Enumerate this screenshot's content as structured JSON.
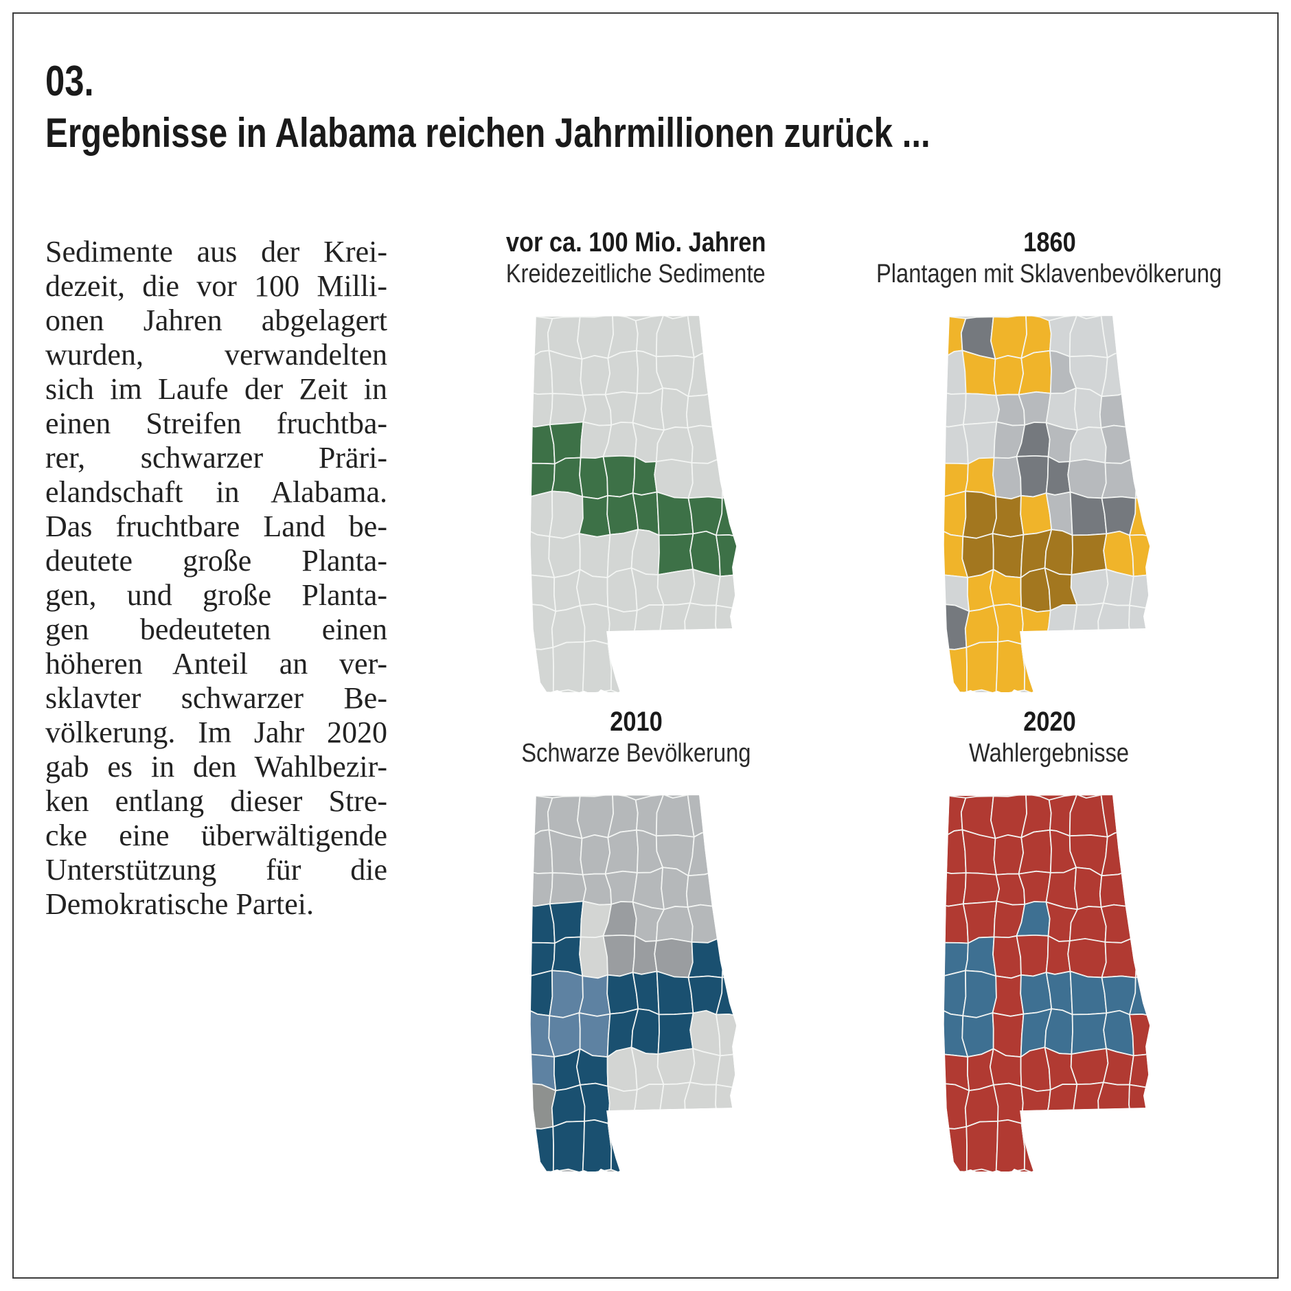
{
  "page": {
    "section_number": "03.",
    "headline": "Ergebnisse in Alabama reichen Jahrmillionen zurück ..."
  },
  "paragraph": {
    "lines": [
      "Sedimente aus der Krei-",
      "dezeit, die vor 100 Milli-",
      "onen Jahren abgelagert",
      "wurden, verwandelten",
      "sich im Laufe der Zeit in",
      "einen Streifen fruchtba-",
      "rer, schwarzer Präri-",
      "elandschaft in Alabama.",
      "Das fruchtbare Land be-",
      "deutete große Planta-",
      "gen, und große Planta-",
      "gen bedeuteten einen",
      "höheren Anteil an ver-",
      "sklavter schwarzer Be-",
      "völkerung. Im Jahr 2020",
      "gab es in den Wahlbezir-",
      "ken entlang dieser Stre-",
      "cke eine überwältigende",
      "Unterstützung für die",
      "Demokratische Partei."
    ]
  },
  "maps": [
    {
      "id": "sedimente",
      "title": "vor ca. 100 Mio. Jahren",
      "subtitle": "Kreidezeitliche Sedimente",
      "palette": {
        "base": "#d3d6d4",
        "s": "#d3d6d4",
        "g": "#3d7147"
      },
      "grid": [
        "ssssssss",
        "ssssssss",
        "ssssssss",
        "ggssssss",
        "gggggsss",
        "ssgggggg",
        "sssssggg",
        "ssssssss",
        "ssssssss",
        "ssssssss"
      ]
    },
    {
      "id": "plantagen-1860",
      "title": "1860",
      "subtitle": "Plantagen mit Sklavenbevölkerung",
      "palette": {
        "base": "#d2d5d6",
        "y": "#f0b42a",
        "b": "#a3771f",
        "l": "#d2d5d6",
        "m": "#b7babd",
        "d": "#75797e"
      },
      "grid": [
        "ydyyllll",
        "lyyymlll",
        "llmmllmm",
        "llmdmlmm",
        "yymddmmm",
        "ybbymddy",
        "ybbbbbyy",
        "lyybblll",
        "dyyyllll",
        "yyyyyyyy"
      ]
    },
    {
      "id": "schwarze-bevoelkerung-2010",
      "title": "2010",
      "subtitle": "Schwarze Bevölkerung",
      "palette": {
        "base": "#b5b8ba",
        "n": "#b5b8ba",
        "L": "#d3d5d3",
        "M": "#9a9da0",
        "B": "#1a5070",
        "u": "#5e82a2",
        "w": "#8e918f"
      },
      "grid": [
        "nnnnnnnn",
        "nnnnnnnn",
        "nnnnnnnn",
        "BBLMnnnn",
        "BBLMMMBB",
        "BuuBBBBB",
        "uuuBBBLL",
        "uBBLLLLL",
        "wBBLLLLL",
        "BBBBBBBB"
      ]
    },
    {
      "id": "wahlergebnisse-2020",
      "title": "2020",
      "subtitle": "Wahlergebnisse",
      "palette": {
        "base": "#b13a32",
        "r": "#b13a32",
        "B": "#3e7092"
      },
      "grid": [
        "rrrrrrrr",
        "rrrrrrrr",
        "rrrrrrrr",
        "rrrBrrrr",
        "BBrrrrrr",
        "BBrBBBBB",
        "BBrBBBBr",
        "rrrrrrrr",
        "rrrrrrrr",
        "rrrrrrrr"
      ]
    }
  ],
  "map_stroke": "#f3f5f3"
}
